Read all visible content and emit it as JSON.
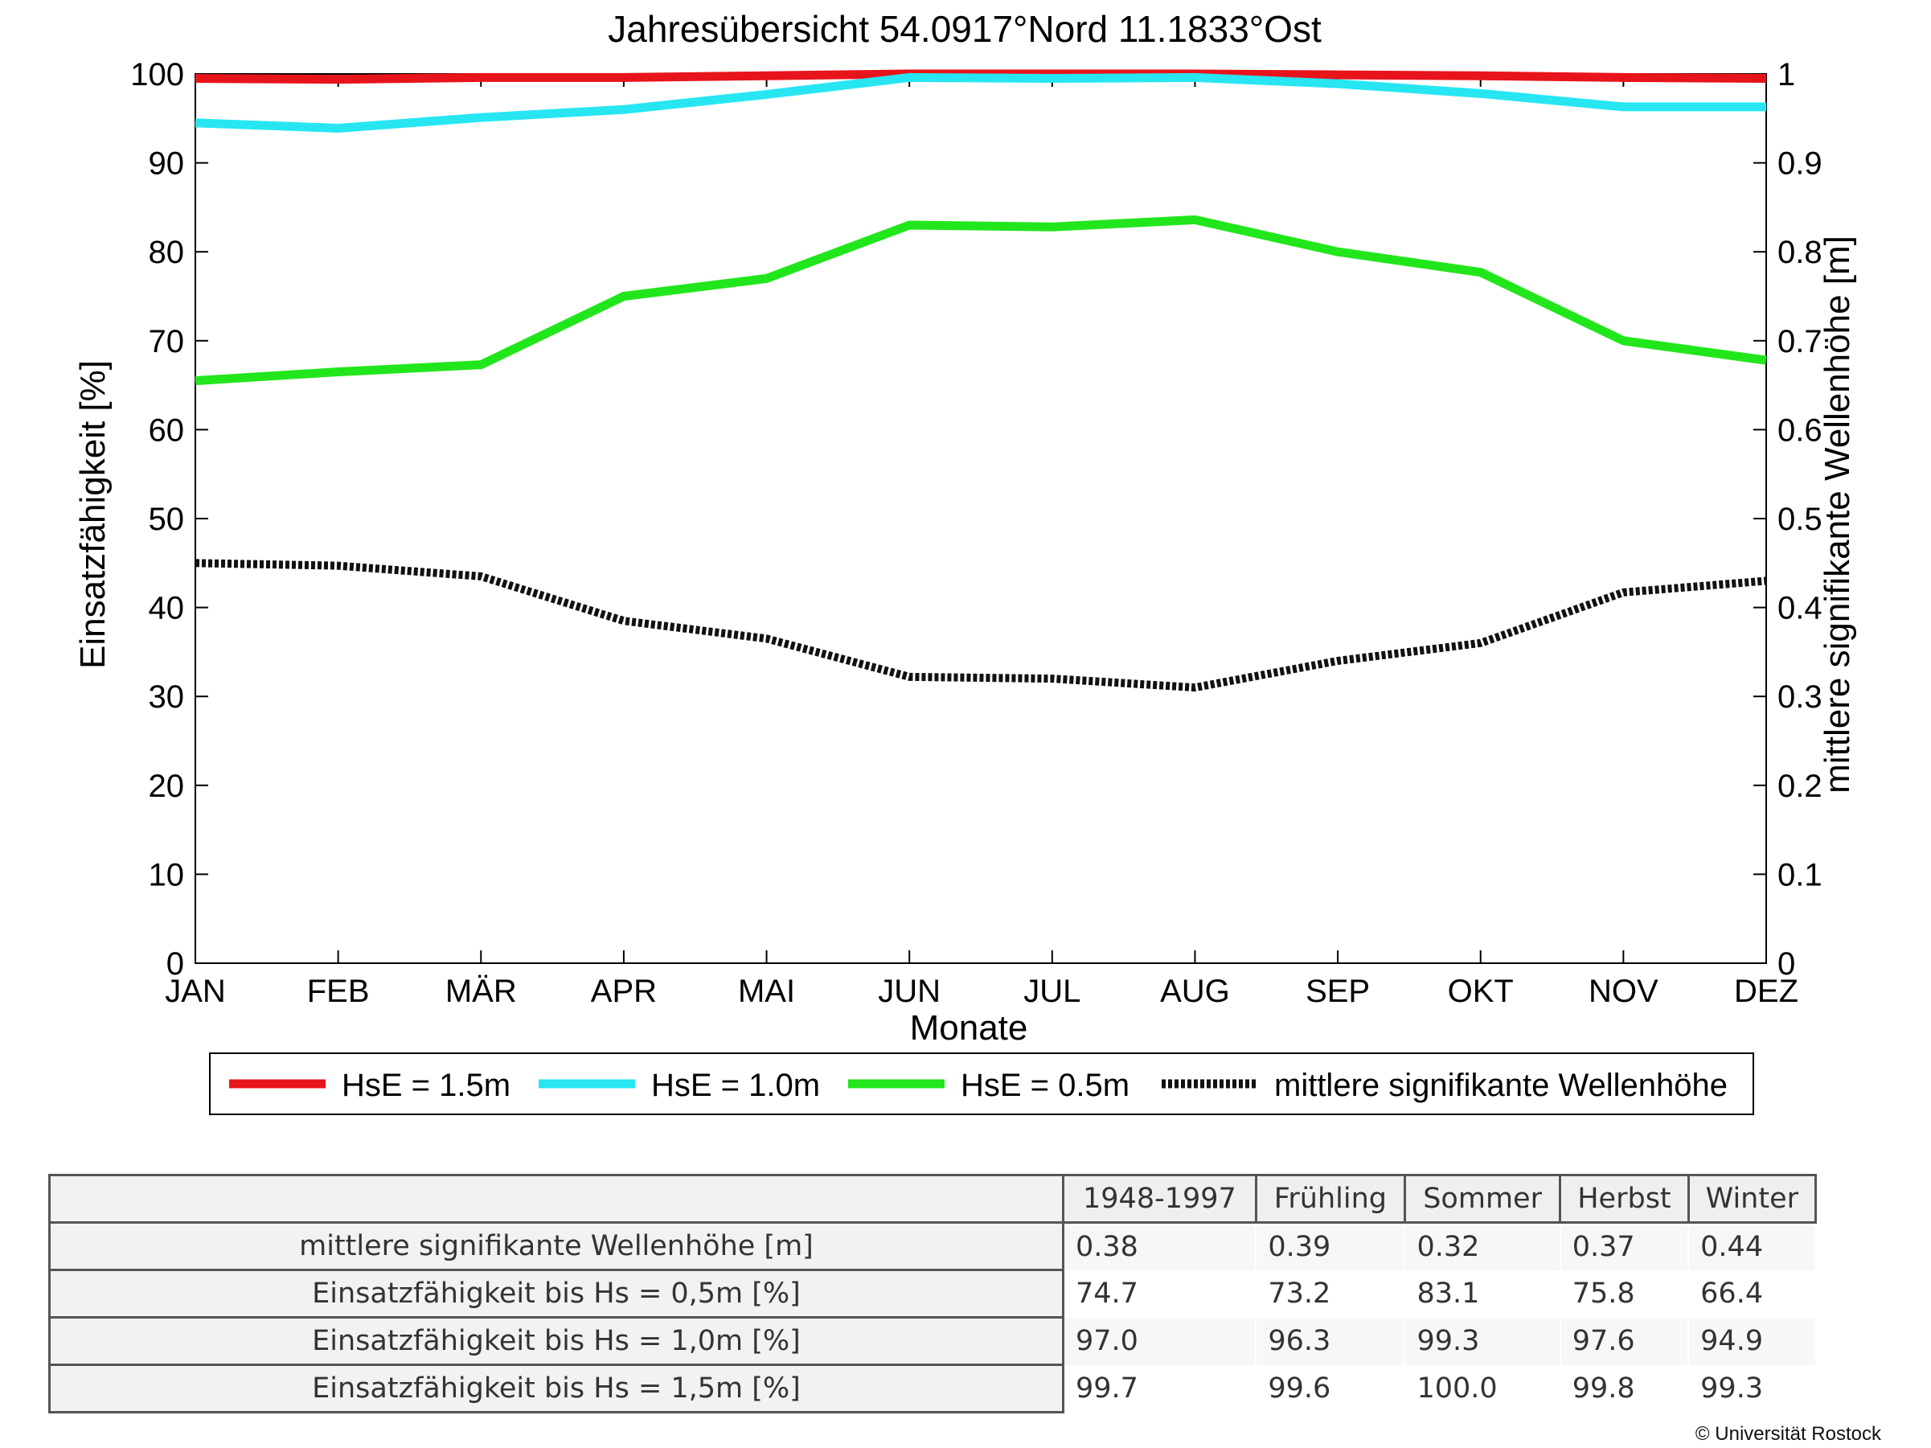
{
  "chart_data": {
    "type": "line",
    "title": "Jahresübersicht  54.0917°Nord  11.1833°Ost",
    "xlabel": "Monate",
    "ylabel": "Einsatzfähigkeit [%]",
    "y2label": "mittlere signifikante Wellenhöhe [m]",
    "ylim": [
      0,
      100
    ],
    "y2lim": [
      0,
      1
    ],
    "yticks": [
      "0",
      "10",
      "20",
      "30",
      "40",
      "50",
      "60",
      "70",
      "80",
      "90",
      "100"
    ],
    "y2ticks": [
      "0",
      "0.1",
      "0.2",
      "0.3",
      "0.4",
      "0.5",
      "0.6",
      "0.7",
      "0.8",
      "0.9",
      "1"
    ],
    "categories": [
      "JAN",
      "FEB",
      "MÄR",
      "APR",
      "MAI",
      "JUN",
      "JUL",
      "AUG",
      "SEP",
      "OKT",
      "NOV",
      "DEZ"
    ],
    "grid": false,
    "legend_position": "bottom",
    "series": [
      {
        "name": "HsE = 1.5m",
        "axis": "left",
        "color": "#e8141c",
        "style": "solid",
        "values": [
          99.5,
          99.4,
          99.6,
          99.6,
          99.8,
          100,
          100,
          100,
          99.9,
          99.8,
          99.6,
          99.5
        ]
      },
      {
        "name": "HsE = 1.0m",
        "axis": "left",
        "color": "#27e6f2",
        "style": "solid",
        "values": [
          94.5,
          93.9,
          95.1,
          96.0,
          97.7,
          99.6,
          99.5,
          99.6,
          98.9,
          97.8,
          96.3,
          96.3
        ]
      },
      {
        "name": "HsE = 0.5m",
        "axis": "left",
        "color": "#22e61c",
        "style": "solid",
        "values": [
          65.5,
          66.5,
          67.3,
          75.0,
          77.0,
          83.0,
          82.8,
          83.6,
          80.0,
          77.7,
          70.0,
          67.8
        ]
      },
      {
        "name": "mittlere signifikante Wellenhöhe",
        "axis": "right",
        "color": "#111111",
        "style": "dotted",
        "values": [
          0.45,
          0.447,
          0.435,
          0.385,
          0.365,
          0.322,
          0.32,
          0.31,
          0.34,
          0.36,
          0.417,
          0.43
        ]
      }
    ]
  },
  "table": {
    "headers": [
      "1948-1997",
      "Frühling",
      "Sommer",
      "Herbst",
      "Winter"
    ],
    "rows": [
      {
        "label": "mittlere signifikante Wellenhöhe [m]",
        "values": [
          "0.38",
          "0.39",
          "0.32",
          "0.37",
          "0.44"
        ]
      },
      {
        "label": "Einsatzfähigkeit bis Hs = 0,5m [%]",
        "values": [
          "74.7",
          "73.2",
          "83.1",
          "75.8",
          "66.4"
        ]
      },
      {
        "label": "Einsatzfähigkeit bis Hs = 1,0m [%]",
        "values": [
          "97.0",
          "96.3",
          "99.3",
          "97.6",
          "94.9"
        ]
      },
      {
        "label": "Einsatzfähigkeit bis Hs = 1,5m [%]",
        "values": [
          "99.7",
          "99.6",
          "100.0",
          "99.8",
          "99.3"
        ]
      }
    ]
  },
  "copyright": "© Universität Rostock"
}
